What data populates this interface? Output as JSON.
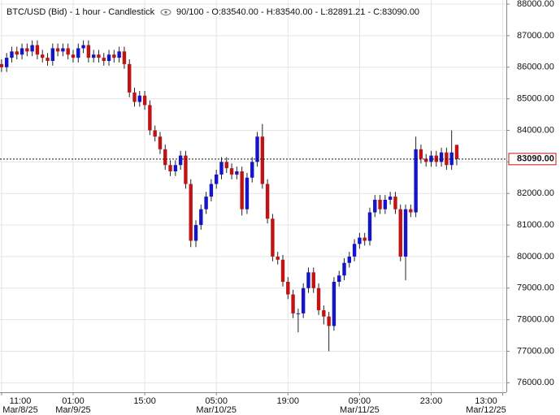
{
  "chart_data": {
    "type": "candlestick",
    "title": "BTC/USD (Bid) - 1 hour - Candlestick",
    "info": "90/100 - O:83540.00 - H:83540.00 - L:82891.21 - C:83090.00",
    "x": [
      0,
      1,
      2,
      3,
      4,
      5,
      6,
      7,
      8,
      9,
      10,
      11,
      12,
      13,
      14,
      15,
      16,
      17,
      18,
      19,
      20,
      21,
      22,
      23,
      24,
      25,
      26,
      27,
      28,
      29,
      30,
      31,
      32,
      33,
      34,
      35,
      36,
      37,
      38,
      39,
      40,
      41,
      42,
      43,
      44,
      45,
      46,
      47,
      48,
      49,
      50,
      51,
      52,
      53,
      54,
      55,
      56,
      57,
      58,
      59,
      60,
      61,
      62,
      63,
      64,
      65,
      66,
      67,
      68,
      69,
      70,
      71,
      72,
      73,
      74,
      75,
      76,
      77,
      78,
      79,
      80,
      81,
      82,
      83,
      84,
      85,
      86,
      87,
      88,
      89
    ],
    "open": [
      86100,
      86000,
      86300,
      86500,
      86400,
      86600,
      86500,
      86700,
      86400,
      86300,
      86200,
      86600,
      86500,
      86600,
      86400,
      86300,
      86600,
      86700,
      86300,
      86400,
      86300,
      86200,
      86400,
      86300,
      86500,
      86100,
      85200,
      84900,
      85100,
      84800,
      84000,
      83800,
      83400,
      82900,
      82700,
      82900,
      83200,
      82300,
      80500,
      81000,
      81500,
      81900,
      82300,
      82600,
      83000,
      82800,
      82600,
      82700,
      81500,
      82500,
      83000,
      83800,
      82300,
      81200,
      80000,
      79900,
      79200,
      78800,
      78200,
      78200,
      79000,
      79500,
      79000,
      78300,
      78100,
      77800,
      79200,
      79400,
      79800,
      80000,
      80400,
      80600,
      80500,
      81400,
      81800,
      81500,
      81800,
      81900,
      81500,
      80000,
      81500,
      81400,
      83400,
      83100,
      83000,
      83200,
      83000,
      83300,
      82900,
      83540
    ],
    "high": [
      86250,
      86450,
      86650,
      86650,
      86750,
      86750,
      86850,
      86850,
      86550,
      86450,
      86750,
      86750,
      86750,
      86750,
      86550,
      86750,
      86850,
      86850,
      86550,
      86550,
      86450,
      86550,
      86550,
      86650,
      86650,
      86250,
      85350,
      85250,
      85250,
      84950,
      84150,
      83950,
      83550,
      83050,
      83050,
      83350,
      83350,
      82450,
      81150,
      81650,
      82050,
      82450,
      82750,
      83150,
      83150,
      82950,
      82850,
      82850,
      82650,
      83150,
      83950,
      84200,
      82450,
      81350,
      80150,
      80050,
      79350,
      78950,
      78350,
      79150,
      79650,
      79650,
      79150,
      78450,
      78250,
      79350,
      79550,
      79950,
      80150,
      80550,
      80750,
      80750,
      81550,
      81950,
      81950,
      81950,
      82050,
      82050,
      81650,
      81650,
      81650,
      83800,
      83550,
      83250,
      83350,
      83350,
      83450,
      83450,
      84000,
      83540
    ],
    "low": [
      85850,
      85850,
      86150,
      86250,
      86250,
      86350,
      86350,
      86250,
      86150,
      86050,
      86050,
      86350,
      86350,
      86250,
      86150,
      86150,
      86450,
      86150,
      86150,
      86150,
      86050,
      86050,
      86150,
      86150,
      85950,
      85050,
      84750,
      84750,
      84650,
      83850,
      83650,
      83250,
      82750,
      82550,
      82550,
      82750,
      82150,
      80300,
      80300,
      80850,
      81350,
      81750,
      82150,
      82450,
      82650,
      82450,
      82450,
      81300,
      81350,
      82350,
      82850,
      82150,
      81050,
      79850,
      79750,
      79050,
      78650,
      78050,
      77600,
      78050,
      78850,
      78850,
      78150,
      77850,
      77000,
      77650,
      79050,
      79250,
      79650,
      79850,
      80250,
      80350,
      80350,
      81250,
      81350,
      81350,
      81650,
      81350,
      79850,
      79250,
      81250,
      81250,
      82950,
      82850,
      82850,
      82850,
      82850,
      82750,
      82750,
      82891.21
    ],
    "close": [
      86000,
      86300,
      86500,
      86400,
      86600,
      86500,
      86700,
      86400,
      86300,
      86200,
      86600,
      86500,
      86600,
      86400,
      86300,
      86600,
      86700,
      86300,
      86400,
      86300,
      86200,
      86400,
      86300,
      86500,
      86100,
      85200,
      84900,
      85100,
      84800,
      84000,
      83800,
      83400,
      82900,
      82700,
      82900,
      83200,
      82300,
      80500,
      81000,
      81500,
      81900,
      82300,
      82600,
      83000,
      82800,
      82600,
      82700,
      81500,
      82500,
      83000,
      83800,
      82300,
      81200,
      80000,
      79900,
      79200,
      78800,
      78200,
      78200,
      79000,
      79500,
      79000,
      78300,
      78100,
      77800,
      79200,
      79400,
      79800,
      80000,
      80400,
      80600,
      80500,
      81400,
      81800,
      81500,
      81800,
      81900,
      81500,
      80000,
      81500,
      81400,
      83400,
      83100,
      83000,
      83200,
      83000,
      83300,
      82900,
      83300,
      83090
    ],
    "up_color": "#1414c8",
    "down_color": "#c01414",
    "xlim": [
      -0.3,
      98.7
    ],
    "xticks": [
      {
        "value": 0,
        "label": "11:00",
        "date": "Mar/8/25"
      },
      {
        "value": 14,
        "label": "01:00",
        "date": "Mar/9/25"
      },
      {
        "value": 28,
        "label": "15:00"
      },
      {
        "value": 42,
        "label": "05:00",
        "date": "Mar/10/25"
      },
      {
        "value": 56,
        "label": "19:00"
      },
      {
        "value": 70,
        "label": "09:00",
        "date": "Mar/11/25"
      },
      {
        "value": 84,
        "label": "23:00"
      },
      {
        "value": 98,
        "label": "13:00",
        "date": "Mar/12/25"
      }
    ],
    "ylim": [
      75700,
      88130
    ],
    "yticks": [
      {
        "value": 76000,
        "label": "76000.00"
      },
      {
        "value": 77000,
        "label": "77000.00"
      },
      {
        "value": 78000,
        "label": "78000.00"
      },
      {
        "value": 79000,
        "label": "79000.00"
      },
      {
        "value": 80000,
        "label": "80000.00"
      },
      {
        "value": 81000,
        "label": "81000.00"
      },
      {
        "value": 82000,
        "label": "82000.00"
      },
      {
        "value": 83000,
        "label": "83000.00"
      },
      {
        "value": 84000,
        "label": "84000.00"
      },
      {
        "value": 85000,
        "label": "85000.00"
      },
      {
        "value": 86000,
        "label": "86000.00"
      },
      {
        "value": 87000,
        "label": "87000.00"
      },
      {
        "value": 88000,
        "label": "88000.00"
      }
    ],
    "last_price": {
      "value": 83090,
      "label": "83090.00"
    },
    "grid": true
  }
}
